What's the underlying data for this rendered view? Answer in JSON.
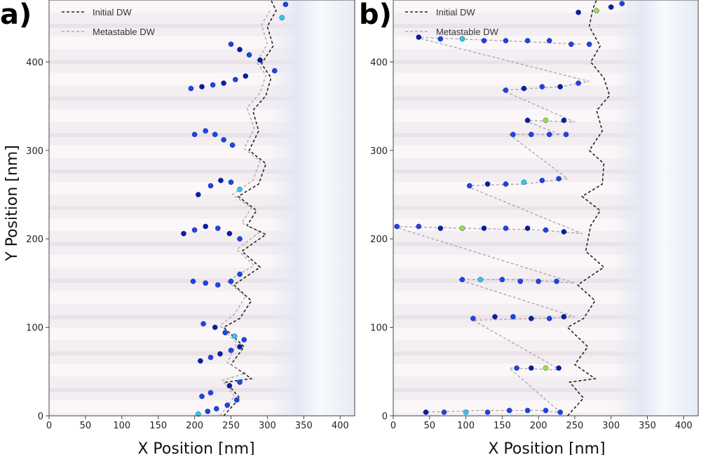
{
  "chart_data": [
    {
      "type": "scatter",
      "panel_label": "a)",
      "xlabel": "X Position [nm]",
      "ylabel": "Y Position [nm]",
      "xlim": [
        0,
        420
      ],
      "ylim": [
        0,
        470
      ],
      "x_ticks": [
        0,
        50,
        100,
        150,
        200,
        250,
        300,
        350,
        400
      ],
      "y_ticks": [
        0,
        100,
        200,
        300,
        400
      ],
      "legend": {
        "placement": "top-left",
        "entries": [
          "Initial DW",
          "Metastable DW"
        ]
      },
      "series": [
        {
          "name": "Initial DW",
          "style": "dashed",
          "color": "#222222",
          "points": [
            [
              240,
              0
            ],
            [
              262,
              20
            ],
            [
              243,
              38
            ],
            [
              278,
              42
            ],
            [
              250,
              58
            ],
            [
              268,
              78
            ],
            [
              240,
              100
            ],
            [
              262,
              110
            ],
            [
              278,
              130
            ],
            [
              254,
              148
            ],
            [
              290,
              168
            ],
            [
              265,
              186
            ],
            [
              298,
              205
            ],
            [
              272,
              215
            ],
            [
              285,
              232
            ],
            [
              260,
              248
            ],
            [
              288,
              262
            ],
            [
              298,
              285
            ],
            [
              275,
              300
            ],
            [
              288,
              322
            ],
            [
              280,
              345
            ],
            [
              298,
              362
            ],
            [
              305,
              382
            ],
            [
              292,
              398
            ],
            [
              308,
              418
            ],
            [
              300,
              440
            ],
            [
              312,
              458
            ],
            [
              305,
              470
            ]
          ]
        },
        {
          "name": "Metastable DW",
          "style": "dashed",
          "color": "#aaaaaa",
          "points": [
            [
              235,
              0
            ],
            [
              255,
              22
            ],
            [
              238,
              40
            ],
            [
              270,
              48
            ],
            [
              245,
              60
            ],
            [
              258,
              82
            ],
            [
              235,
              102
            ],
            [
              255,
              115
            ],
            [
              270,
              135
            ],
            [
              245,
              152
            ],
            [
              282,
              170
            ],
            [
              258,
              188
            ],
            [
              290,
              208
            ],
            [
              265,
              218
            ],
            [
              278,
              235
            ],
            [
              252,
              250
            ],
            [
              280,
              266
            ],
            [
              290,
              288
            ],
            [
              268,
              302
            ],
            [
              282,
              325
            ],
            [
              272,
              348
            ],
            [
              290,
              365
            ],
            [
              298,
              385
            ],
            [
              285,
              400
            ],
            [
              300,
              420
            ],
            [
              292,
              442
            ],
            [
              305,
              460
            ]
          ]
        },
        {
          "name": "",
          "style": "markers",
          "colormap": [
            "#0a1e9e",
            "#1c45e6",
            "#33c8e6",
            "#a0e040",
            "#e02020"
          ],
          "points": [
            [
              205,
              2
            ],
            [
              218,
              5
            ],
            [
              230,
              8
            ],
            [
              245,
              12
            ],
            [
              258,
              18
            ],
            [
              210,
              22
            ],
            [
              222,
              26
            ],
            [
              248,
              34
            ],
            [
              262,
              38
            ],
            [
              208,
              62
            ],
            [
              222,
              66
            ],
            [
              235,
              70
            ],
            [
              250,
              74
            ],
            [
              262,
              78
            ],
            [
              212,
              104
            ],
            [
              228,
              100
            ],
            [
              242,
              94
            ],
            [
              255,
              90
            ],
            [
              268,
              86
            ],
            [
              198,
              152
            ],
            [
              215,
              150
            ],
            [
              232,
              148
            ],
            [
              250,
              152
            ],
            [
              262,
              160
            ],
            [
              185,
              206
            ],
            [
              200,
              210
            ],
            [
              215,
              214
            ],
            [
              232,
              212
            ],
            [
              248,
              206
            ],
            [
              262,
              200
            ],
            [
              205,
              250
            ],
            [
              222,
              260
            ],
            [
              236,
              266
            ],
            [
              250,
              264
            ],
            [
              262,
              256
            ],
            [
              200,
              318
            ],
            [
              215,
              322
            ],
            [
              228,
              318
            ],
            [
              240,
              312
            ],
            [
              252,
              306
            ],
            [
              195,
              370
            ],
            [
              210,
              372
            ],
            [
              225,
              374
            ],
            [
              240,
              376
            ],
            [
              256,
              380
            ],
            [
              270,
              384
            ],
            [
              250,
              420
            ],
            [
              262,
              414
            ],
            [
              275,
              408
            ],
            [
              290,
              402
            ],
            [
              310,
              390
            ],
            [
              320,
              450
            ],
            [
              325,
              465
            ]
          ]
        }
      ]
    },
    {
      "type": "scatter",
      "panel_label": "b)",
      "xlabel": "X Position [nm]",
      "ylabel": "",
      "xlim": [
        0,
        420
      ],
      "ylim": [
        0,
        470
      ],
      "x_ticks": [
        0,
        50,
        100,
        150,
        200,
        250,
        300,
        350,
        400
      ],
      "y_ticks": [
        0,
        100,
        200,
        300,
        400
      ],
      "legend": {
        "placement": "top-left",
        "entries": [
          "Initial DW",
          "Metastable DW"
        ]
      },
      "series": [
        {
          "name": "Initial DW",
          "style": "dashed",
          "color": "#222222",
          "points": [
            [
              240,
              0
            ],
            [
              262,
              20
            ],
            [
              243,
              38
            ],
            [
              278,
              42
            ],
            [
              250,
              58
            ],
            [
              268,
              78
            ],
            [
              240,
              100
            ],
            [
              262,
              110
            ],
            [
              278,
              130
            ],
            [
              254,
              148
            ],
            [
              290,
              168
            ],
            [
              265,
              186
            ],
            [
              272,
              215
            ],
            [
              285,
              232
            ],
            [
              260,
              248
            ],
            [
              288,
              262
            ],
            [
              290,
              285
            ],
            [
              270,
              300
            ],
            [
              288,
              322
            ],
            [
              280,
              345
            ],
            [
              298,
              362
            ],
            [
              290,
              382
            ],
            [
              272,
              400
            ],
            [
              285,
              418
            ],
            [
              270,
              440
            ],
            [
              275,
              460
            ],
            [
              280,
              470
            ]
          ]
        },
        {
          "name": "Metastable DW",
          "style": "dashed",
          "color": "#aaaaaa",
          "points": [
            [
              40,
              4
            ],
            [
              120,
              6
            ],
            [
              200,
              6
            ],
            [
              230,
              4
            ],
            [
              160,
              54
            ],
            [
              230,
              52
            ],
            [
              110,
              108
            ],
            [
              200,
              110
            ],
            [
              250,
              112
            ],
            [
              90,
              154
            ],
            [
              180,
              154
            ],
            [
              250,
              150
            ],
            [
              0,
              214
            ],
            [
              100,
              212
            ],
            [
              200,
              210
            ],
            [
              260,
              206
            ],
            [
              100,
              260
            ],
            [
              180,
              262
            ],
            [
              240,
              268
            ],
            [
              160,
              318
            ],
            [
              230,
              318
            ],
            [
              180,
              334
            ],
            [
              250,
              332
            ],
            [
              150,
              368
            ],
            [
              230,
              372
            ],
            [
              270,
              378
            ],
            [
              30,
              428
            ],
            [
              150,
              424
            ],
            [
              260,
              420
            ]
          ]
        },
        {
          "name": "",
          "style": "markers",
          "colormap": [
            "#0a1e9e",
            "#1c45e6",
            "#33c8e6",
            "#a0e040",
            "#e02020"
          ],
          "points": [
            [
              45,
              4
            ],
            [
              70,
              4
            ],
            [
              100,
              4
            ],
            [
              130,
              4
            ],
            [
              160,
              6
            ],
            [
              185,
              6
            ],
            [
              210,
              6
            ],
            [
              230,
              4
            ],
            [
              170,
              54
            ],
            [
              190,
              54
            ],
            [
              210,
              54
            ],
            [
              228,
              54
            ],
            [
              110,
              110
            ],
            [
              140,
              112
            ],
            [
              165,
              112
            ],
            [
              190,
              110
            ],
            [
              215,
              110
            ],
            [
              235,
              112
            ],
            [
              95,
              154
            ],
            [
              120,
              154
            ],
            [
              150,
              154
            ],
            [
              175,
              152
            ],
            [
              200,
              152
            ],
            [
              225,
              152
            ],
            [
              5,
              214
            ],
            [
              35,
              214
            ],
            [
              65,
              212
            ],
            [
              95,
              212
            ],
            [
              125,
              212
            ],
            [
              155,
              212
            ],
            [
              185,
              212
            ],
            [
              210,
              210
            ],
            [
              235,
              208
            ],
            [
              105,
              260
            ],
            [
              130,
              262
            ],
            [
              155,
              262
            ],
            [
              180,
              264
            ],
            [
              205,
              266
            ],
            [
              228,
              268
            ],
            [
              165,
              318
            ],
            [
              190,
              318
            ],
            [
              215,
              318
            ],
            [
              238,
              318
            ],
            [
              185,
              334
            ],
            [
              210,
              334
            ],
            [
              235,
              334
            ],
            [
              155,
              368
            ],
            [
              180,
              370
            ],
            [
              205,
              372
            ],
            [
              230,
              372
            ],
            [
              255,
              376
            ],
            [
              35,
              428
            ],
            [
              65,
              426
            ],
            [
              95,
              426
            ],
            [
              125,
              424
            ],
            [
              155,
              424
            ],
            [
              185,
              424
            ],
            [
              215,
              424
            ],
            [
              245,
              420
            ],
            [
              270,
              420
            ],
            [
              255,
              456
            ],
            [
              280,
              458
            ],
            [
              300,
              462
            ],
            [
              315,
              466
            ]
          ]
        }
      ]
    }
  ]
}
